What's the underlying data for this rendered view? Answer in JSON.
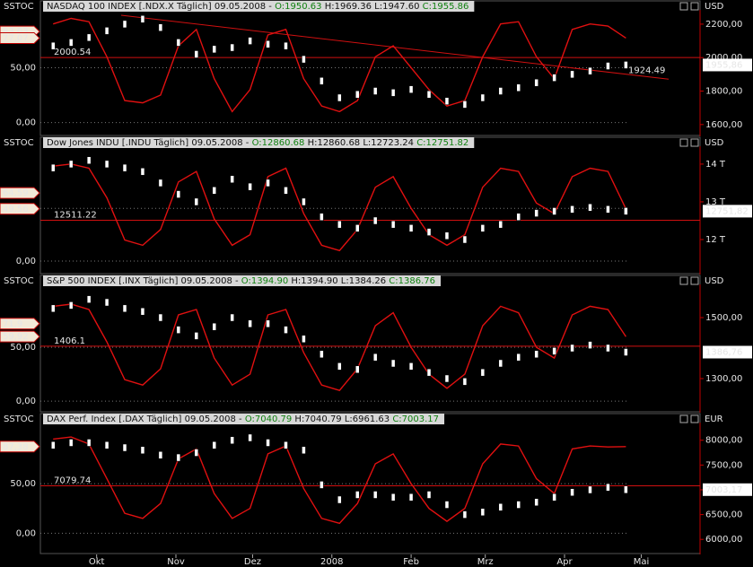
{
  "chart_data": [
    {
      "type": "price-stoch",
      "left_label": "SSTOC",
      "currency": "USD",
      "header": {
        "name": "NASDAQ 100 INDEX [.NDX.X  Täglich]",
        "date": "09.05.2008 -",
        "open": "O:1950.63",
        "hl": "H:1969.36 L:1947.60",
        "close": "C:1955.86"
      },
      "x": [
        27,
        34,
        41,
        48,
        55,
        62,
        69,
        76,
        83,
        90,
        97,
        104,
        111,
        118,
        125,
        132,
        139,
        146,
        153,
        160,
        167,
        174,
        181,
        188,
        195,
        202,
        209,
        216,
        223,
        230,
        237,
        244,
        251
      ],
      "xlim": [
        22,
        280
      ],
      "closes": [
        2070,
        2090,
        2120,
        2160,
        2200,
        2230,
        2180,
        2090,
        2020,
        2050,
        2060,
        2100,
        2080,
        2070,
        1990,
        1860,
        1760,
        1780,
        1800,
        1790,
        1810,
        1780,
        1740,
        1720,
        1760,
        1800,
        1820,
        1850,
        1880,
        1900,
        1920,
        1950,
        1955.86
      ],
      "last_label": "1955,86",
      "stoch": [
        90,
        95,
        92,
        60,
        20,
        18,
        25,
        70,
        85,
        40,
        10,
        30,
        80,
        85,
        40,
        15,
        10,
        20,
        60,
        70,
        50,
        30,
        15,
        20,
        60,
        90,
        92,
        60,
        40,
        85,
        90,
        88,
        77.07
      ],
      "stoch_color": "#e01010",
      "candle_color": "#ffffff",
      "ylim": [
        1540,
        2280
      ],
      "yticks": [
        {
          "value": 1600,
          "label": "1600,00"
        },
        {
          "value": 1800,
          "label": "1800,00"
        },
        {
          "value": 2000,
          "label": "2000,00"
        },
        {
          "value": 2200,
          "label": "2200,00"
        }
      ],
      "y2lim": [
        -11,
        102
      ],
      "y2ticks": [
        {
          "value": 0,
          "label": "0,00"
        },
        {
          "value": 50,
          "label": "50,00"
        }
      ],
      "markers": [
        {
          "value": 83.03,
          "label": "83,03"
        },
        {
          "value": 77.07,
          "label": "77,07"
        }
      ],
      "levels": [
        {
          "value": 2000.54,
          "label": "2000.54"
        }
      ],
      "trend": {
        "value": 1924.49,
        "label": "1924.49"
      }
    },
    {
      "type": "price-stoch",
      "left_label": "SSTOC",
      "currency": "USD",
      "header": {
        "name": "Dow Jones INDU [.INDU  Täglich]",
        "date": "09.05.2008 -",
        "open": "O:12860.68",
        "hl": "H:12860.68 L:12723.24",
        "close": "C:12751.82"
      },
      "x": [
        27,
        34,
        41,
        48,
        55,
        62,
        69,
        76,
        83,
        90,
        97,
        104,
        111,
        118,
        125,
        132,
        139,
        146,
        153,
        160,
        167,
        174,
        181,
        188,
        195,
        202,
        209,
        216,
        223,
        230,
        237,
        244,
        251
      ],
      "xlim": [
        22,
        280
      ],
      "closes": [
        13900,
        14000,
        14100,
        14000,
        13900,
        13800,
        13500,
        13200,
        13000,
        13300,
        13600,
        13400,
        13500,
        13300,
        13000,
        12600,
        12400,
        12300,
        12500,
        12400,
        12300,
        12200,
        12100,
        12000,
        12300,
        12400,
        12600,
        12700,
        12750,
        12800,
        12850,
        12800,
        12751.82
      ],
      "last_label": "12751,82",
      "stoch": [
        90,
        92,
        88,
        60,
        20,
        15,
        30,
        75,
        85,
        40,
        15,
        25,
        80,
        88,
        45,
        15,
        10,
        30,
        70,
        80,
        50,
        25,
        15,
        25,
        70,
        88,
        85,
        55,
        45,
        80,
        88,
        85,
        49.56
      ],
      "stoch_color": "#e01010",
      "candle_color": "#ffffff",
      "ylim": [
        11120,
        14450
      ],
      "yticks": [
        {
          "value": 12000,
          "label": "12 T"
        },
        {
          "value": 13000,
          "label": "13 T"
        },
        {
          "value": 14000,
          "label": "14 T"
        }
      ],
      "y2lim": [
        -11,
        108
      ],
      "y2ticks": [
        {
          "value": 0,
          "label": "0,00"
        },
        {
          "value": 50,
          "label": "50,00"
        }
      ],
      "markers": [
        {
          "value": 64.59,
          "label": "64,59"
        },
        {
          "value": 49.56,
          "label": "49,56"
        }
      ],
      "levels": [
        {
          "value": 12511.22,
          "label": "12511.22"
        }
      ]
    },
    {
      "type": "price-stoch",
      "left_label": "SSTOC",
      "currency": "USD",
      "header": {
        "name": "S&P 500 INDEX [.INX  Täglich]",
        "date": "09.05.2008 -",
        "open": "O:1394.90",
        "hl": "H:1394.90 L:1384.26",
        "close": "C:1386.76"
      },
      "x": [
        27,
        34,
        41,
        48,
        55,
        62,
        69,
        76,
        83,
        90,
        97,
        104,
        111,
        118,
        125,
        132,
        139,
        146,
        153,
        160,
        167,
        174,
        181,
        188,
        195,
        202,
        209,
        216,
        223,
        230,
        237,
        244,
        251
      ],
      "xlim": [
        22,
        280
      ],
      "closes": [
        1530,
        1540,
        1560,
        1550,
        1530,
        1520,
        1500,
        1460,
        1440,
        1470,
        1500,
        1480,
        1480,
        1460,
        1430,
        1380,
        1340,
        1330,
        1370,
        1350,
        1340,
        1320,
        1300,
        1290,
        1320,
        1350,
        1370,
        1380,
        1390,
        1400,
        1410,
        1400,
        1386.76
      ],
      "last_label": "1386,76",
      "stoch": [
        88,
        90,
        85,
        55,
        20,
        15,
        30,
        80,
        85,
        40,
        15,
        25,
        80,
        85,
        45,
        15,
        10,
        30,
        70,
        82,
        50,
        25,
        12,
        25,
        70,
        88,
        82,
        50,
        40,
        80,
        88,
        85,
        59.92
      ],
      "stoch_color": "#e01010",
      "candle_color": "#ffffff",
      "ylim": [
        1194,
        1606
      ],
      "yticks": [
        {
          "value": 1300,
          "label": "1300,00"
        },
        {
          "value": 1500,
          "label": "1500,00"
        }
      ],
      "y2lim": [
        -9,
        107.5
      ],
      "y2ticks": [
        {
          "value": 0,
          "label": "0,00"
        },
        {
          "value": 50,
          "label": "50,00"
        }
      ],
      "markers": [
        {
          "value": 71.9,
          "label": "71,9"
        },
        {
          "value": 59.92,
          "label": "59,92"
        }
      ],
      "levels": [
        {
          "value": 1406.1,
          "label": "1406.1"
        }
      ]
    },
    {
      "type": "price-stoch",
      "left_label": "SSTOC",
      "currency": "EUR",
      "header": {
        "name": "DAX Perf. Index [.DAX  Täglich]",
        "date": "09.05.2008 -",
        "open": "O:7040.79",
        "hl": "H:7040.79 L:6961.63",
        "close": "C:7003.17"
      },
      "x": [
        27,
        34,
        41,
        48,
        55,
        62,
        69,
        76,
        83,
        90,
        97,
        104,
        111,
        118,
        125,
        132,
        139,
        146,
        153,
        160,
        167,
        174,
        181,
        188,
        195,
        202,
        209,
        216,
        223,
        230,
        237,
        244,
        251
      ],
      "xlim": [
        22,
        280
      ],
      "xticks": [
        {
          "value": 44,
          "label": "Okt"
        },
        {
          "value": 75,
          "label": "Nov"
        },
        {
          "value": 105,
          "label": "Dez"
        },
        {
          "value": 136,
          "label": "2008"
        },
        {
          "value": 167,
          "label": "Feb"
        },
        {
          "value": 196,
          "label": "Mrz"
        },
        {
          "value": 227,
          "label": "Apr"
        },
        {
          "value": 257,
          "label": "Mai"
        }
      ],
      "closes": [
        7900,
        7950,
        7950,
        7900,
        7850,
        7800,
        7700,
        7650,
        7750,
        7900,
        8000,
        8050,
        7950,
        7900,
        7800,
        7100,
        6800,
        6900,
        6900,
        6850,
        6850,
        6900,
        6700,
        6500,
        6550,
        6650,
        6700,
        6750,
        6850,
        6950,
        7000,
        7050,
        7003.17
      ],
      "last_label": "7003,17",
      "stoch": [
        95,
        97,
        90,
        55,
        20,
        15,
        30,
        75,
        85,
        40,
        15,
        25,
        80,
        88,
        45,
        15,
        10,
        30,
        70,
        80,
        50,
        25,
        12,
        25,
        70,
        90,
        88,
        55,
        40,
        85,
        88,
        87,
        87.38
      ],
      "stoch_color": "#e01010",
      "candle_color": "#ffffff",
      "ylim": [
        5732,
        8339
      ],
      "yticks": [
        {
          "value": 6000,
          "label": "6000,00"
        },
        {
          "value": 6500,
          "label": "6500,00"
        },
        {
          "value": 7000,
          "label": "7000,00"
        },
        {
          "value": 7500,
          "label": "7500,00"
        },
        {
          "value": 8000,
          "label": "8000,00"
        }
      ],
      "y2lim": [
        -19.6,
        110.7
      ],
      "y2ticks": [
        {
          "value": 0,
          "label": "0,00"
        },
        {
          "value": 50,
          "label": "50,00"
        }
      ],
      "markers": [
        {
          "value": 87.38,
          "label": "87,38"
        }
      ],
      "levels": [
        {
          "value": 7079.74,
          "label": "7079.74"
        }
      ]
    }
  ]
}
